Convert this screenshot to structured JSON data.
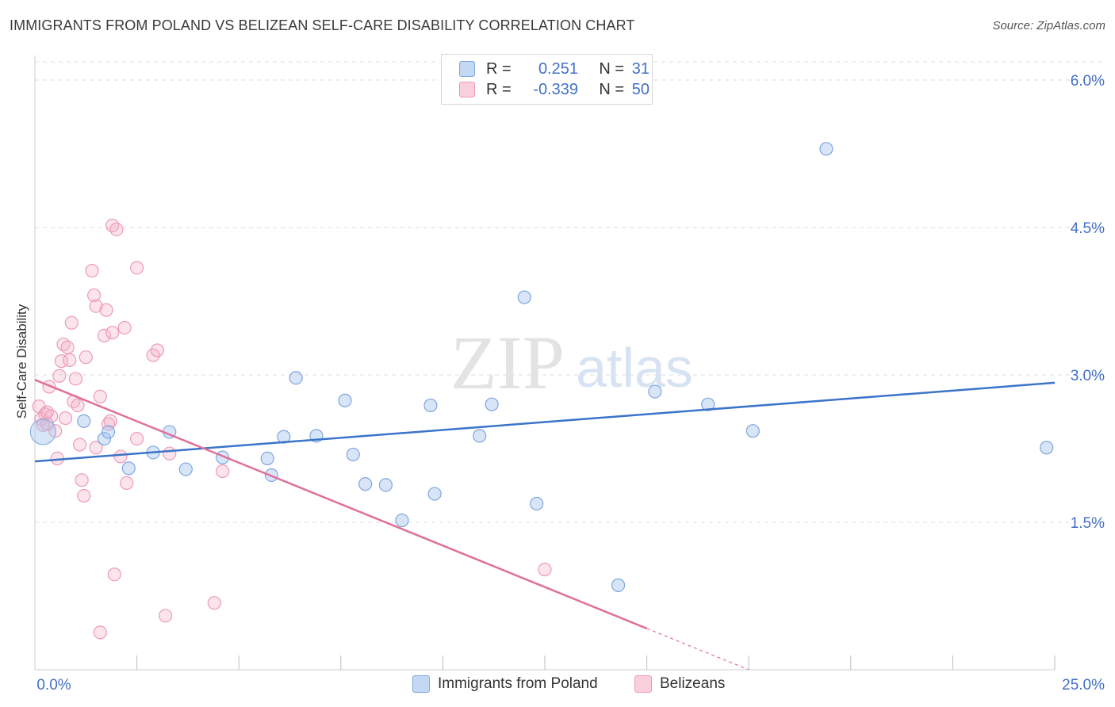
{
  "title": "IMMIGRANTS FROM POLAND VS BELIZEAN SELF-CARE DISABILITY CORRELATION CHART",
  "source": "Source: ZipAtlas.com",
  "watermark": {
    "zip": "ZIP",
    "atlas": "atlas"
  },
  "legend": {
    "r_label": "R =",
    "n_label": "N =",
    "rows": [
      {
        "r": "0.251",
        "n": "31"
      },
      {
        "r": "-0.339",
        "n": "50"
      }
    ]
  },
  "bottom_legend": [
    "Immigrants from Poland",
    "Belizeans"
  ],
  "chart_data": {
    "type": "scatter",
    "title": "IMMIGRANTS FROM POLAND VS BELIZEAN SELF-CARE DISABILITY CORRELATION CHART",
    "ylabel": "Self-Care Disability",
    "xlabel": "",
    "xlim": [
      0,
      25
    ],
    "ylim": [
      0,
      6.25
    ],
    "x_tick_labels": [
      "0.0%",
      "25.0%"
    ],
    "y_ticks": [
      1.5,
      3.0,
      4.5,
      6.0
    ],
    "y_tick_labels": [
      "1.5%",
      "3.0%",
      "4.5%",
      "6.0%"
    ],
    "grid": true,
    "legend_position": "top-center",
    "colors": {
      "poland": "#a9c6ee",
      "poland_line": "#3b74c9",
      "belize": "#f4b3c8",
      "belize_line": "#e0709a",
      "tick_text": "#4470c6"
    },
    "series": [
      {
        "name": "Immigrants from Poland",
        "r": 0.251,
        "n": 31,
        "trend": {
          "x": [
            0,
            25
          ],
          "y": [
            2.12,
            2.92
          ]
        },
        "points": [
          [
            0.2,
            2.42
          ],
          [
            1.2,
            2.53
          ],
          [
            1.7,
            2.35
          ],
          [
            1.8,
            2.42
          ],
          [
            2.3,
            2.05
          ],
          [
            2.9,
            2.21
          ],
          [
            3.3,
            2.42
          ],
          [
            3.7,
            2.04
          ],
          [
            4.6,
            2.16
          ],
          [
            5.7,
            2.15
          ],
          [
            5.8,
            1.98
          ],
          [
            6.1,
            2.37
          ],
          [
            6.4,
            2.97
          ],
          [
            6.9,
            2.38
          ],
          [
            7.6,
            2.74
          ],
          [
            7.8,
            2.19
          ],
          [
            8.1,
            1.89
          ],
          [
            8.6,
            1.88
          ],
          [
            9.0,
            1.52
          ],
          [
            9.7,
            2.69
          ],
          [
            9.8,
            1.79
          ],
          [
            10.9,
            2.38
          ],
          [
            11.2,
            2.7
          ],
          [
            12.0,
            3.79
          ],
          [
            12.3,
            1.69
          ],
          [
            14.3,
            0.86
          ],
          [
            15.2,
            2.83
          ],
          [
            16.5,
            2.7
          ],
          [
            17.6,
            2.43
          ],
          [
            19.4,
            5.3
          ],
          [
            24.8,
            2.26
          ]
        ]
      },
      {
        "name": "Belizeans",
        "r": -0.339,
        "n": 50,
        "trend": {
          "x": [
            0,
            15
          ],
          "y": [
            2.95,
            0.42
          ]
        },
        "trend_dashed": {
          "x": [
            15,
            17.5
          ],
          "y": [
            0.42,
            0.0
          ]
        },
        "points": [
          [
            0.1,
            2.68
          ],
          [
            0.15,
            2.55
          ],
          [
            0.2,
            2.49
          ],
          [
            0.25,
            2.6
          ],
          [
            0.3,
            2.62
          ],
          [
            0.35,
            2.88
          ],
          [
            0.4,
            2.58
          ],
          [
            0.5,
            2.43
          ],
          [
            0.55,
            2.15
          ],
          [
            0.6,
            2.99
          ],
          [
            0.65,
            3.14
          ],
          [
            0.7,
            3.31
          ],
          [
            0.75,
            2.56
          ],
          [
            0.8,
            3.28
          ],
          [
            0.85,
            3.15
          ],
          [
            0.9,
            3.53
          ],
          [
            0.95,
            2.73
          ],
          [
            1.0,
            2.96
          ],
          [
            1.05,
            2.69
          ],
          [
            1.1,
            2.29
          ],
          [
            1.15,
            1.93
          ],
          [
            1.2,
            1.77
          ],
          [
            1.25,
            3.18
          ],
          [
            1.4,
            4.06
          ],
          [
            1.45,
            3.81
          ],
          [
            1.5,
            3.7
          ],
          [
            1.5,
            2.26
          ],
          [
            1.6,
            0.38
          ],
          [
            1.6,
            2.78
          ],
          [
            1.7,
            3.4
          ],
          [
            1.75,
            3.66
          ],
          [
            1.8,
            2.5
          ],
          [
            1.85,
            2.53
          ],
          [
            1.9,
            3.43
          ],
          [
            1.9,
            4.52
          ],
          [
            1.95,
            0.97
          ],
          [
            2.0,
            4.48
          ],
          [
            2.1,
            2.17
          ],
          [
            2.2,
            3.48
          ],
          [
            2.25,
            1.9
          ],
          [
            2.5,
            2.35
          ],
          [
            2.5,
            4.09
          ],
          [
            2.9,
            3.2
          ],
          [
            3.0,
            3.25
          ],
          [
            3.2,
            0.55
          ],
          [
            3.3,
            2.2
          ],
          [
            4.4,
            0.68
          ],
          [
            4.6,
            2.02
          ],
          [
            12.5,
            1.02
          ],
          [
            0.3,
            2.5
          ]
        ]
      }
    ]
  }
}
